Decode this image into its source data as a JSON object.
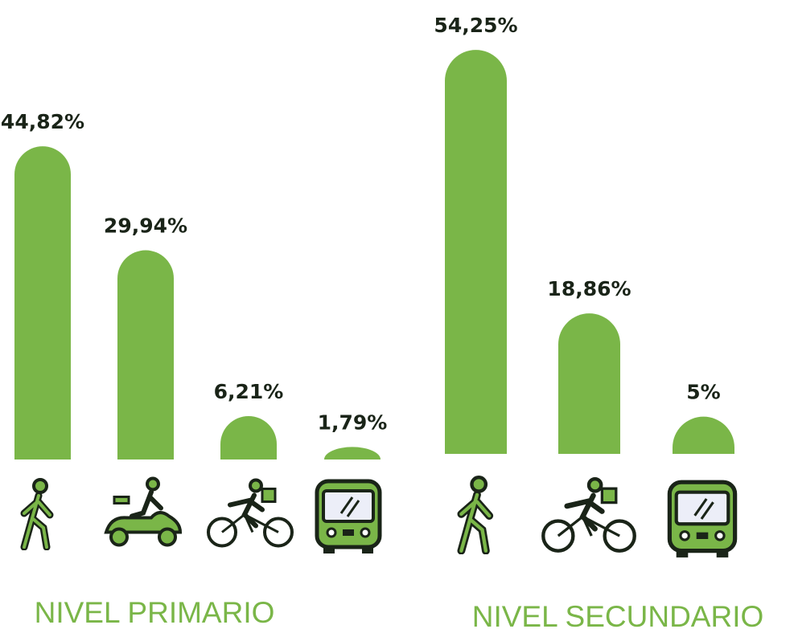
{
  "chart_data": [
    {
      "type": "bar",
      "title": "NIVEL PRIMARIO",
      "color": "#7ab648",
      "values": [
        44.82,
        29.94,
        6.21,
        1.79
      ],
      "value_labels": [
        "44,82%",
        "29,94%",
        "6,21%",
        "1,79%"
      ]
    },
    {
      "type": "bar",
      "title": "NIVEL SECUNDARIO",
      "color": "#7ab648",
      "values": [
        54.25,
        18.86,
        5
      ],
      "value_labels": [
        "54,25%",
        "18,86%",
        "5%"
      ]
    }
  ]
}
